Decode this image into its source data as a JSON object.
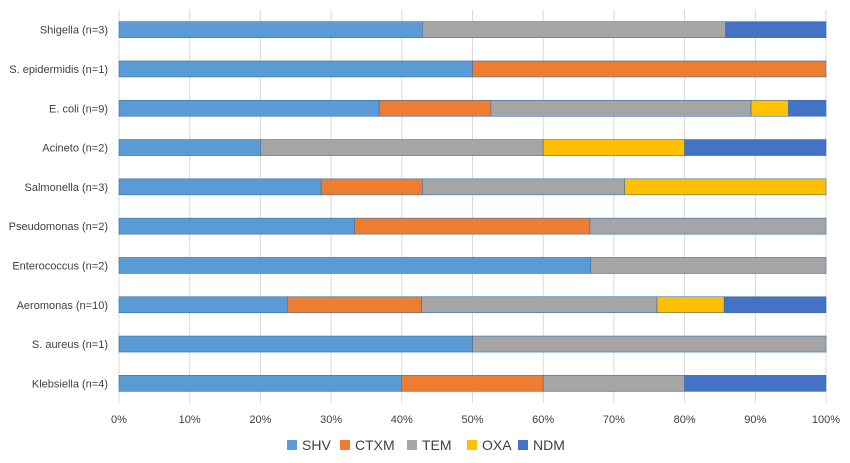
{
  "chart_data": {
    "type": "bar",
    "orientation": "horizontal",
    "stacked": "percent",
    "title": "",
    "xlabel": "",
    "ylabel": "",
    "xlim": [
      0,
      100
    ],
    "grid": true,
    "legend_position": "bottom",
    "x_ticks": [
      "0%",
      "10%",
      "20%",
      "30%",
      "40%",
      "50%",
      "60%",
      "70%",
      "80%",
      "90%",
      "100%"
    ],
    "categories": [
      "Shigella (n=3)",
      "S. epidermidis (n=1)",
      "E. coli (n=9)",
      "Acineto (n=2)",
      "Salmonella (n=3)",
      "Pseudomonas (n=2)",
      "Enterococcus (n=2)",
      "Aeromonas (n=10)",
      "S. aureus (n=1)",
      "Klebsiella (n=4)"
    ],
    "series": [
      {
        "name": "SHV",
        "color": "#5B9BD5",
        "values": [
          42.9,
          50,
          36.8,
          20,
          28.6,
          33.3,
          66.7,
          23.8,
          50,
          40
        ]
      },
      {
        "name": "CTXM",
        "color": "#ED7D31",
        "values": [
          0,
          50,
          15.8,
          0,
          14.3,
          33.3,
          0,
          19.0,
          0,
          20
        ]
      },
      {
        "name": "TEM",
        "color": "#A5A5A5",
        "values": [
          42.9,
          0,
          36.8,
          40,
          28.6,
          33.4,
          33.3,
          33.3,
          50,
          20
        ]
      },
      {
        "name": "OXA",
        "color": "#FFC000",
        "values": [
          0,
          0,
          5.3,
          20,
          28.5,
          0,
          0,
          9.5,
          0,
          0
        ]
      },
      {
        "name": "NDM",
        "color": "#4472C4",
        "values": [
          14.2,
          0,
          5.3,
          20,
          0,
          0,
          0,
          14.4,
          0,
          20
        ]
      }
    ]
  }
}
